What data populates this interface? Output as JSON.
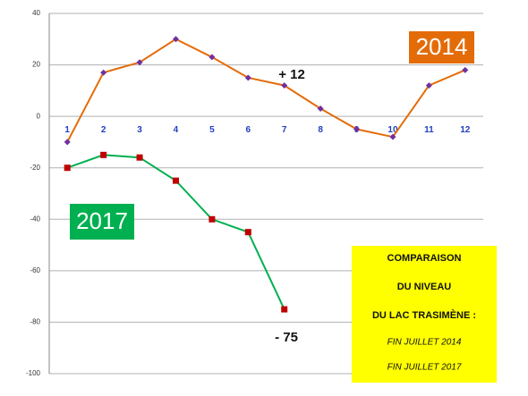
{
  "chart_data": {
    "type": "line",
    "categories": [
      "1",
      "2",
      "3",
      "4",
      "5",
      "6",
      "7",
      "8",
      "9",
      "10",
      "11",
      "12"
    ],
    "series": [
      {
        "name": "2014",
        "color": "#e36c09",
        "marker_color": "#7030a0",
        "marker": "diamond",
        "values": [
          -10,
          17,
          21,
          30,
          23,
          15,
          12,
          3,
          -5,
          -8,
          12,
          18
        ]
      },
      {
        "name": "2017",
        "color": "#00b050",
        "marker_color": "#c00000",
        "marker": "square",
        "values": [
          -20,
          -15,
          -16,
          -25,
          -40,
          -45,
          -75,
          null,
          null,
          null,
          null,
          null
        ]
      }
    ],
    "ylim": [
      -100,
      40
    ],
    "yticks": [
      -100,
      -80,
      -60,
      -40,
      -20,
      0,
      20,
      40
    ],
    "grid": true,
    "annotations": [
      "+ 12",
      "- 75"
    ],
    "info_box": {
      "color": "#ffff00",
      "title_lines": [
        "COMPARAISON",
        "DU NIVEAU",
        "DU LAC TRASIMÈNE :"
      ],
      "sub_lines": [
        "FIN JUILLET 2014",
        "FIN JUILLET 2017"
      ]
    }
  }
}
